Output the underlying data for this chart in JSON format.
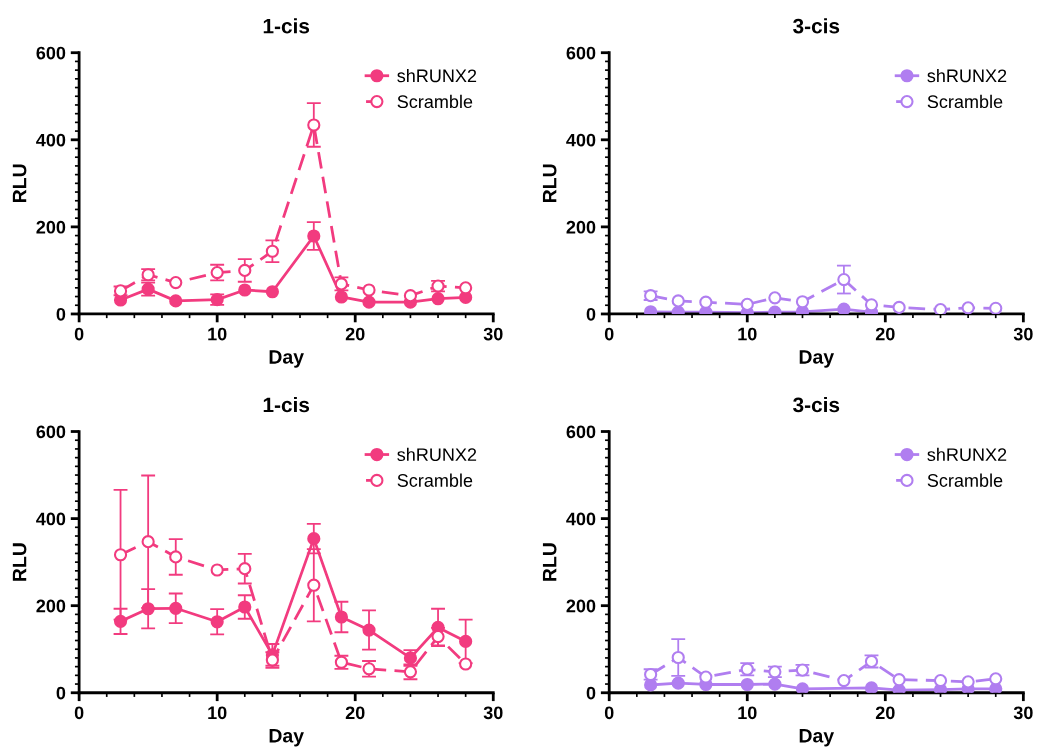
{
  "chart_data": [
    {
      "type": "line",
      "title": "1-cis",
      "xlabel": "Day",
      "ylabel": "RLU",
      "x": [
        3,
        5,
        7,
        10,
        12,
        14,
        17,
        19,
        21,
        24,
        26,
        28
      ],
      "xlim": [
        0,
        30
      ],
      "xticks": [
        0,
        10,
        20,
        30
      ],
      "ylim": [
        0,
        600
      ],
      "yticks": [
        0,
        200,
        400,
        600
      ],
      "legend": "top right",
      "marker": "circle",
      "grid": false,
      "series": [
        {
          "name": "shRUNX2",
          "color": "#f23b7f",
          "line_style": "solid",
          "values": [
            32,
            57,
            30,
            33,
            55,
            51,
            179,
            39,
            27,
            27,
            35,
            38
          ],
          "errors": [
            null,
            15,
            null,
            12,
            null,
            null,
            32,
            null,
            null,
            null,
            null,
            null
          ]
        },
        {
          "name": "Scramble",
          "color": "#f23b7f",
          "line_style": "dashed",
          "values": [
            53,
            90,
            72,
            95,
            100,
            144,
            434,
            69,
            55,
            42,
            64,
            60
          ],
          "errors": [
            10,
            13,
            null,
            18,
            26,
            25,
            50,
            15,
            null,
            null,
            12,
            null
          ]
        }
      ]
    },
    {
      "type": "line",
      "title": "3-cis",
      "xlabel": "Day",
      "ylabel": "RLU",
      "x": [
        3,
        5,
        7,
        10,
        12,
        14,
        17,
        19,
        21,
        24,
        26,
        28
      ],
      "xlim": [
        0,
        30
      ],
      "xticks": [
        0,
        10,
        20,
        30
      ],
      "ylim": [
        0,
        600
      ],
      "yticks": [
        0,
        200,
        400,
        600
      ],
      "legend": "top right",
      "marker": "circle",
      "grid": false,
      "series": [
        {
          "name": "shRUNX2",
          "color": "#b07ef0",
          "line_style": "solid",
          "values": [
            5,
            4,
            4,
            3,
            4,
            5,
            11,
            4,
            null,
            null,
            null,
            null
          ]
        },
        {
          "name": "Scramble",
          "color": "#b07ef0",
          "line_style": "dashed",
          "values": [
            42,
            30,
            27,
            22,
            37,
            28,
            79,
            21,
            15,
            10,
            14,
            13
          ],
          "errors": [
            10,
            null,
            null,
            null,
            null,
            null,
            32,
            null,
            null,
            null,
            null,
            null
          ]
        }
      ]
    },
    {
      "type": "line",
      "title": "1-cis",
      "xlabel": "Day",
      "ylabel": "RLU",
      "x": [
        3,
        5,
        7,
        10,
        12,
        14,
        17,
        19,
        21,
        24,
        26,
        28
      ],
      "xlim": [
        0,
        30
      ],
      "xticks": [
        0,
        10,
        20,
        30
      ],
      "ylim": [
        0,
        600
      ],
      "yticks": [
        0,
        200,
        400,
        600
      ],
      "legend": "top right",
      "marker": "circle",
      "grid": false,
      "series": [
        {
          "name": "shRUNX2",
          "color": "#f23b7f",
          "line_style": "solid",
          "values": [
            164,
            193,
            194,
            163,
            197,
            87,
            354,
            174,
            144,
            80,
            150,
            118
          ],
          "errors": [
            29,
            45,
            34,
            29,
            27,
            25,
            34,
            35,
            45,
            18,
            43,
            50
          ]
        },
        {
          "name": "Scramble",
          "color": "#f23b7f",
          "line_style": "dashed",
          "values": [
            317,
            347,
            312,
            282,
            285,
            75,
            247,
            70,
            55,
            48,
            129,
            66
          ],
          "errors": [
            149,
            152,
            41,
            null,
            34,
            18,
            83,
            15,
            18,
            17,
            20,
            null
          ]
        }
      ]
    },
    {
      "type": "line",
      "title": "3-cis",
      "xlabel": "Day",
      "ylabel": "RLU",
      "x": [
        3,
        5,
        7,
        10,
        12,
        14,
        17,
        19,
        21,
        24,
        26,
        28
      ],
      "xlim": [
        0,
        30
      ],
      "xticks": [
        0,
        10,
        20,
        30
      ],
      "ylim": [
        0,
        600
      ],
      "yticks": [
        0,
        200,
        400,
        600
      ],
      "legend": "top right",
      "marker": "circle",
      "grid": false,
      "series": [
        {
          "name": "shRUNX2",
          "color": "#b07ef0",
          "line_style": "solid",
          "values": [
            18,
            22,
            19,
            19,
            20,
            9,
            null,
            11,
            6,
            7,
            9,
            9
          ]
        },
        {
          "name": "Scramble",
          "color": "#b07ef0",
          "line_style": "dashed",
          "values": [
            42,
            81,
            36,
            54,
            48,
            52,
            28,
            72,
            30,
            28,
            25,
            32
          ],
          "errors": [
            12,
            42,
            null,
            14,
            12,
            12,
            null,
            14,
            null,
            null,
            null,
            null
          ]
        }
      ]
    }
  ]
}
